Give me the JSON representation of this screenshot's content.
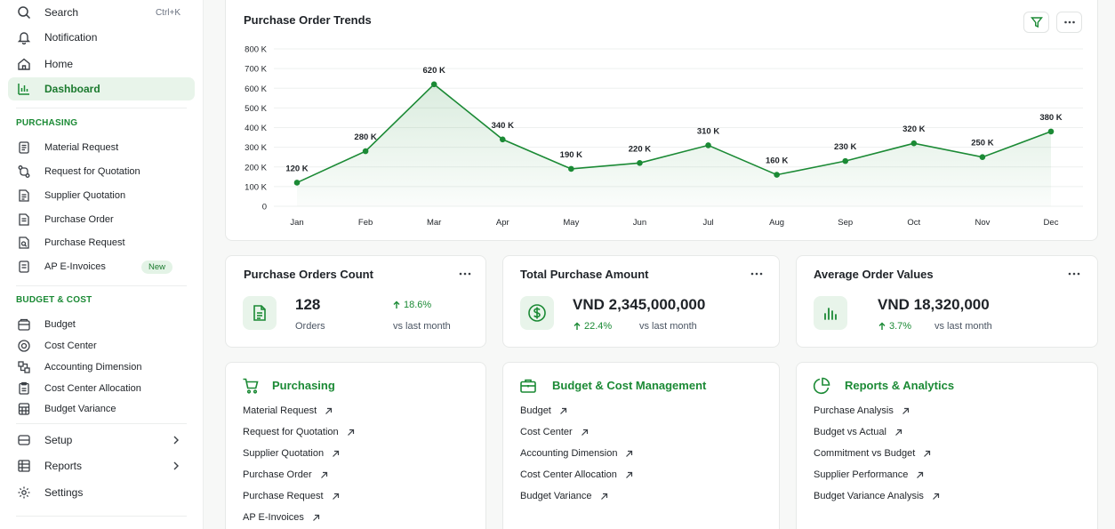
{
  "sidebar": {
    "search": {
      "label": "Search",
      "shortcut": "Ctrl+K"
    },
    "notification": "Notification",
    "home": "Home",
    "dashboard": "Dashboard",
    "purchasing_section": "PURCHASING",
    "purchasing_items": [
      "Material Request",
      "Request for Quotation",
      "Supplier Quotation",
      "Purchase Order",
      "Purchase Request",
      "AP E-Invoices"
    ],
    "new_badge": "New",
    "budget_section": "BUDGET & COST",
    "budget_items": [
      "Budget",
      "Cost Center",
      "Accounting Dimension",
      "Cost Center Allocation",
      "Budget Variance"
    ],
    "setup": "Setup",
    "reports": "Reports",
    "settings": "Settings"
  },
  "trends": {
    "title": "Purchase Order Trends"
  },
  "chart_data": {
    "type": "area",
    "categories": [
      "Jan",
      "Feb",
      "Mar",
      "Apr",
      "May",
      "Jun",
      "Jul",
      "Aug",
      "Sep",
      "Oct",
      "Nov",
      "Dec"
    ],
    "values": [
      120,
      280,
      620,
      340,
      190,
      220,
      310,
      160,
      230,
      320,
      250,
      380
    ],
    "data_labels": [
      "120 K",
      "280 K",
      "620 K",
      "340 K",
      "190 K",
      "220 K",
      "310 K",
      "160 K",
      "230 K",
      "320 K",
      "250 K",
      "380 K"
    ],
    "y_ticks": [
      "0",
      "100 K",
      "200 K",
      "300 K",
      "400 K",
      "500 K",
      "600 K",
      "700 K",
      "800 K"
    ],
    "ylim": [
      0,
      800
    ],
    "grid": true,
    "color": "#1b8a35"
  },
  "stats": {
    "count": {
      "title": "Purchase Orders Count",
      "value": "128",
      "unit": "Orders",
      "change": "18.6%",
      "compare": "vs last month"
    },
    "amount": {
      "title": "Total Purchase Amount",
      "value": "VND  2,345,000,000",
      "change": "22.4%",
      "compare": "vs last month"
    },
    "average": {
      "title": "Average Order Values",
      "value": "VND  18,320,000",
      "change": "3.7%",
      "compare": "vs last month"
    }
  },
  "modules": {
    "purchasing": {
      "title": "Purchasing",
      "links": [
        "Material Request",
        "Request for Quotation",
        "Supplier Quotation",
        "Purchase Order",
        "Purchase Request",
        "AP E-Invoices"
      ]
    },
    "budget": {
      "title": "Budget & Cost Management",
      "links": [
        "Budget",
        "Cost Center",
        "Accounting Dimension",
        "Cost Center Allocation",
        "Budget Variance"
      ]
    },
    "reports": {
      "title": "Reports & Analytics",
      "links": [
        "Purchase Analysis",
        "Budget vs Actual",
        "Commitment vs Budget",
        "Supplier Performance",
        "Budget Variance Analysis"
      ]
    }
  },
  "colors": {
    "accent": "#1b8a35",
    "active_bg": "#e8f4ea"
  },
  "icons": [
    "search-icon",
    "bell-icon",
    "home-icon",
    "bar-chart-icon",
    "document-icon",
    "git-compare-icon",
    "file-text-icon",
    "file-search-icon",
    "wallet-icon",
    "coins-icon",
    "dimension-icon",
    "allocation-icon",
    "calculator-icon",
    "database-icon",
    "table-icon",
    "gear-icon",
    "filter-icon",
    "more-icon",
    "dollar-circle-icon",
    "cart-icon",
    "briefcase-icon",
    "pie-chart-icon",
    "arrow-up-right-icon",
    "arrow-up-icon",
    "chevron-right-icon"
  ]
}
